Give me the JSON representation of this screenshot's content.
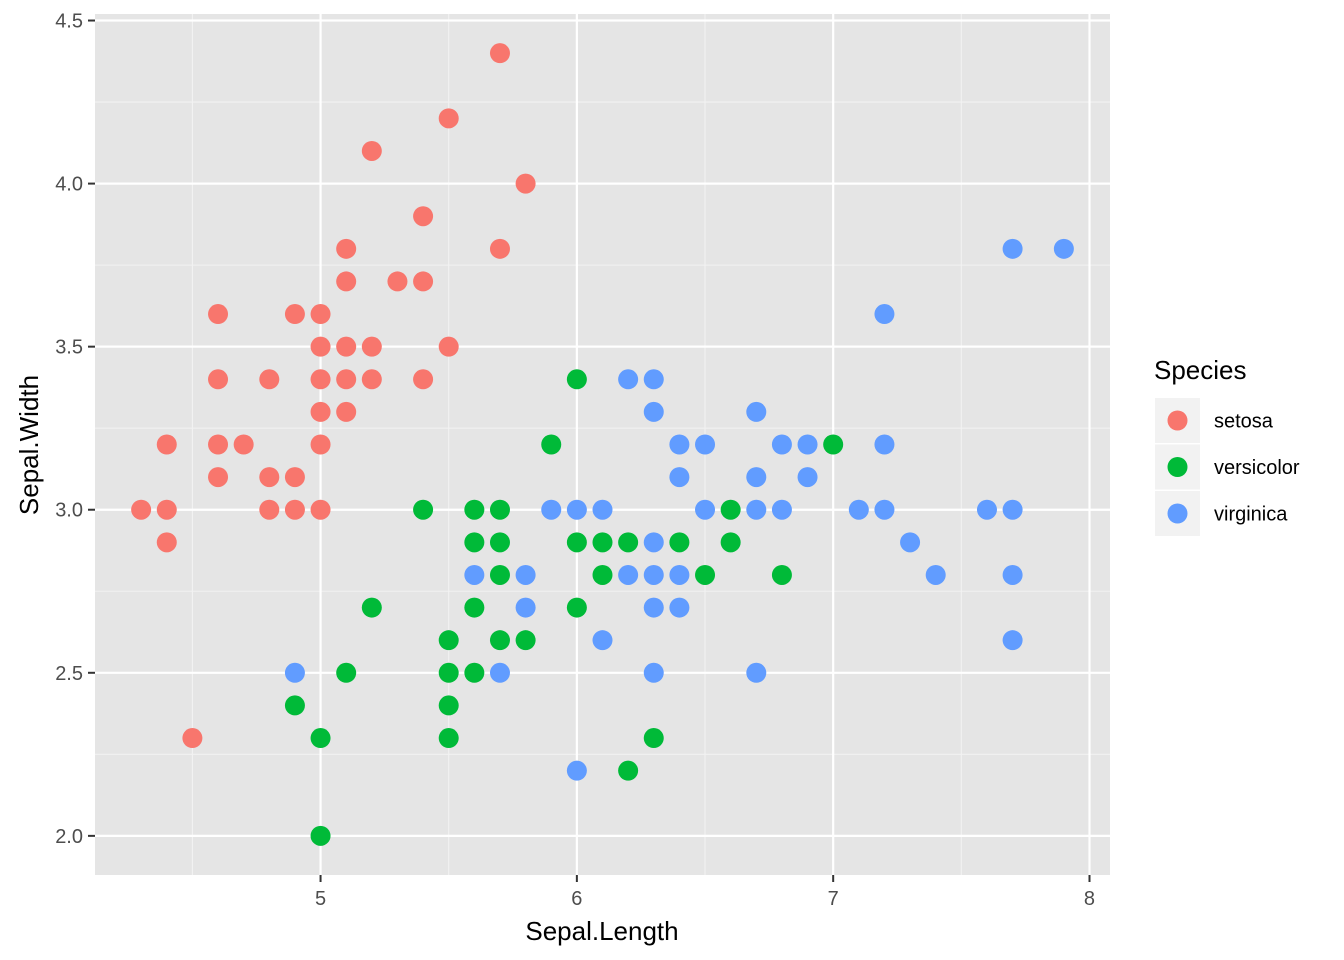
{
  "chart_data": {
    "type": "scatter",
    "title": "",
    "xlabel": "Sepal.Length",
    "ylabel": "Sepal.Width",
    "xlim": [
      4.12,
      8.08
    ],
    "ylim": [
      1.88,
      4.52
    ],
    "x_ticks": [
      5,
      6,
      7,
      8
    ],
    "x_tick_labels": [
      "5",
      "6",
      "7",
      "8"
    ],
    "y_ticks": [
      2.0,
      2.5,
      3.0,
      3.5,
      4.0,
      4.5
    ],
    "y_tick_labels": [
      "2.0",
      "2.5",
      "3.0",
      "3.5",
      "4.0",
      "4.5"
    ],
    "grid": true,
    "panel_background": "#e5e5e5",
    "legend": {
      "title": "Species",
      "position": "right",
      "entries": [
        {
          "label": "setosa",
          "color": "#f8766d"
        },
        {
          "label": "versicolor",
          "color": "#00ba38"
        },
        {
          "label": "virginica",
          "color": "#619cff"
        }
      ]
    },
    "series": [
      {
        "name": "setosa",
        "color": "#f8766d",
        "points": [
          [
            5.7,
            4.4
          ],
          [
            5.5,
            4.2
          ],
          [
            5.2,
            4.1
          ],
          [
            5.8,
            4.0
          ],
          [
            5.4,
            3.9
          ],
          [
            5.1,
            3.8
          ],
          [
            5.7,
            3.8
          ],
          [
            5.1,
            3.7
          ],
          [
            5.3,
            3.7
          ],
          [
            5.4,
            3.7
          ],
          [
            4.6,
            3.6
          ],
          [
            4.9,
            3.6
          ],
          [
            5.0,
            3.6
          ],
          [
            5.0,
            3.5
          ],
          [
            5.1,
            3.5
          ],
          [
            5.2,
            3.5
          ],
          [
            5.5,
            3.5
          ],
          [
            4.6,
            3.4
          ],
          [
            4.8,
            3.4
          ],
          [
            5.0,
            3.4
          ],
          [
            5.1,
            3.4
          ],
          [
            5.2,
            3.4
          ],
          [
            5.4,
            3.4
          ],
          [
            5.0,
            3.3
          ],
          [
            5.1,
            3.3
          ],
          [
            4.4,
            3.2
          ],
          [
            4.6,
            3.2
          ],
          [
            4.7,
            3.2
          ],
          [
            5.0,
            3.2
          ],
          [
            4.6,
            3.1
          ],
          [
            4.8,
            3.1
          ],
          [
            4.9,
            3.1
          ],
          [
            4.3,
            3.0
          ],
          [
            4.4,
            3.0
          ],
          [
            4.8,
            3.0
          ],
          [
            4.9,
            3.0
          ],
          [
            5.0,
            3.0
          ],
          [
            4.4,
            2.9
          ],
          [
            4.5,
            2.3
          ]
        ]
      },
      {
        "name": "versicolor",
        "color": "#00ba38",
        "points": [
          [
            6.0,
            3.4
          ],
          [
            5.9,
            3.2
          ],
          [
            7.0,
            3.2
          ],
          [
            5.4,
            3.0
          ],
          [
            5.6,
            3.0
          ],
          [
            5.7,
            3.0
          ],
          [
            6.6,
            3.0
          ],
          [
            5.6,
            2.9
          ],
          [
            5.7,
            2.9
          ],
          [
            6.0,
            2.9
          ],
          [
            6.1,
            2.9
          ],
          [
            6.2,
            2.9
          ],
          [
            6.4,
            2.9
          ],
          [
            6.6,
            2.9
          ],
          [
            5.7,
            2.8
          ],
          [
            6.1,
            2.8
          ],
          [
            6.5,
            2.8
          ],
          [
            6.8,
            2.8
          ],
          [
            5.2,
            2.7
          ],
          [
            5.6,
            2.7
          ],
          [
            6.0,
            2.7
          ],
          [
            5.5,
            2.6
          ],
          [
            5.7,
            2.6
          ],
          [
            5.8,
            2.6
          ],
          [
            5.1,
            2.5
          ],
          [
            5.5,
            2.5
          ],
          [
            5.6,
            2.5
          ],
          [
            4.9,
            2.4
          ],
          [
            5.5,
            2.4
          ],
          [
            5.0,
            2.3
          ],
          [
            5.5,
            2.3
          ],
          [
            6.3,
            2.3
          ],
          [
            6.2,
            2.2
          ],
          [
            5.0,
            2.0
          ]
        ]
      },
      {
        "name": "virginica",
        "color": "#619cff",
        "points": [
          [
            7.7,
            3.8
          ],
          [
            7.9,
            3.8
          ],
          [
            7.2,
            3.6
          ],
          [
            6.2,
            3.4
          ],
          [
            6.3,
            3.4
          ],
          [
            6.3,
            3.3
          ],
          [
            6.7,
            3.3
          ],
          [
            6.4,
            3.2
          ],
          [
            6.5,
            3.2
          ],
          [
            6.8,
            3.2
          ],
          [
            6.9,
            3.2
          ],
          [
            7.2,
            3.2
          ],
          [
            6.4,
            3.1
          ],
          [
            6.7,
            3.1
          ],
          [
            6.9,
            3.1
          ],
          [
            5.9,
            3.0
          ],
          [
            6.0,
            3.0
          ],
          [
            6.1,
            3.0
          ],
          [
            6.5,
            3.0
          ],
          [
            6.7,
            3.0
          ],
          [
            6.8,
            3.0
          ],
          [
            7.1,
            3.0
          ],
          [
            7.2,
            3.0
          ],
          [
            7.6,
            3.0
          ],
          [
            7.7,
            3.0
          ],
          [
            6.3,
            2.9
          ],
          [
            7.3,
            2.9
          ],
          [
            5.6,
            2.8
          ],
          [
            5.8,
            2.8
          ],
          [
            6.2,
            2.8
          ],
          [
            6.3,
            2.8
          ],
          [
            6.4,
            2.8
          ],
          [
            7.4,
            2.8
          ],
          [
            7.7,
            2.8
          ],
          [
            5.8,
            2.7
          ],
          [
            6.3,
            2.7
          ],
          [
            6.4,
            2.7
          ],
          [
            6.1,
            2.6
          ],
          [
            7.7,
            2.6
          ],
          [
            4.9,
            2.5
          ],
          [
            5.7,
            2.5
          ],
          [
            6.3,
            2.5
          ],
          [
            6.7,
            2.5
          ],
          [
            6.0,
            2.2
          ]
        ]
      }
    ]
  }
}
